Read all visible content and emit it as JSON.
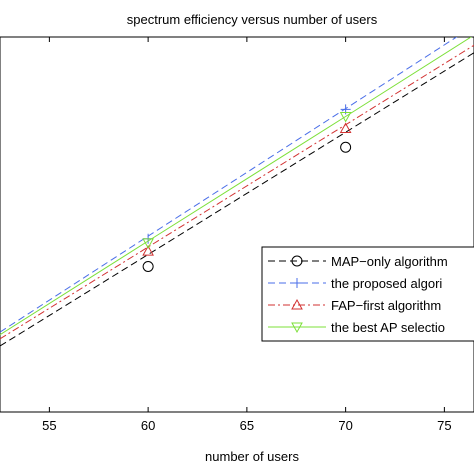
{
  "chart_data": {
    "type": "line",
    "title": "spectrum efficiency versus number of users",
    "xlabel": "number of users",
    "ylabel": "",
    "xlim": [
      52.5,
      76.5
    ],
    "ylim": [
      0,
      10
    ],
    "xticks": [
      55,
      60,
      65,
      70,
      75
    ],
    "xtick_labels": [
      "55",
      "60",
      "65",
      "70",
      "75"
    ],
    "grid": false,
    "legend_position": "right",
    "series": [
      {
        "name": "MAP−only algorithm",
        "color": "#000000",
        "line_style": "dashed",
        "marker": "circle",
        "x": [
          52.5,
          60,
          70,
          76.5
        ],
        "y": [
          1.76,
          4.2,
          7.46,
          9.58
        ],
        "marker_x": [
          60,
          70
        ],
        "marker_y": [
          3.88,
          7.06
        ]
      },
      {
        "name": "the proposed algori",
        "color": "#4a6ee8",
        "line_style": "dashed",
        "marker": "plus",
        "x": [
          52.5,
          60,
          70,
          76.5
        ],
        "y": [
          2.13,
          4.69,
          8.09,
          10.3
        ],
        "marker_x": [
          60,
          70
        ],
        "marker_y": [
          4.62,
          8.07
        ]
      },
      {
        "name": "FAP−first algorithm",
        "color": "#d23232",
        "line_style": "dashdot",
        "marker": "triangle-up",
        "x": [
          52.5,
          60,
          70,
          76.5
        ],
        "y": [
          1.95,
          4.4,
          7.66,
          9.78
        ],
        "marker_x": [
          60,
          70
        ],
        "marker_y": [
          4.29,
          7.56
        ]
      },
      {
        "name": "the best AP selectio",
        "color": "#7de03a",
        "line_style": "solid",
        "marker": "triangle-down",
        "x": [
          52.5,
          60,
          70,
          76.5
        ],
        "y": [
          2.06,
          4.56,
          7.88,
          10.05
        ],
        "marker_x": [
          60,
          70
        ],
        "marker_y": [
          4.51,
          7.88
        ]
      }
    ]
  }
}
